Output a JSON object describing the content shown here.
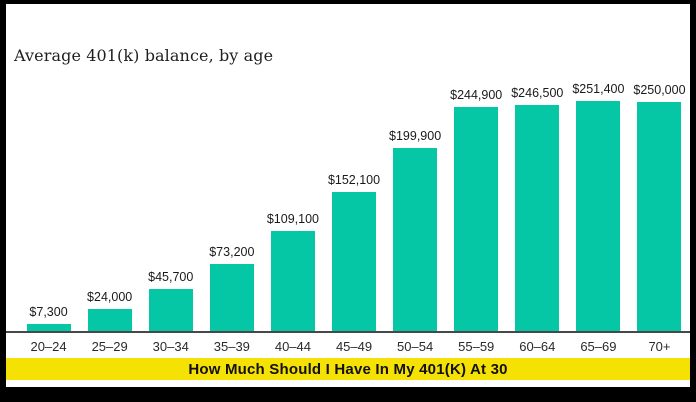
{
  "frame": {
    "border_color": "#000000",
    "canvas_background": "#ffffff"
  },
  "chart_data": {
    "type": "bar",
    "title": "Average 401(k) balance, by age",
    "categories": [
      "20–24",
      "25–29",
      "30–34",
      "35–39",
      "40–44",
      "45–49",
      "50–54",
      "55–59",
      "60–64",
      "65–69",
      "70+"
    ],
    "values": [
      7300,
      24000,
      45700,
      73200,
      109100,
      152100,
      199900,
      244900,
      246500,
      251400,
      250000
    ],
    "value_labels": [
      "$7,300",
      "$24,000",
      "$45,700",
      "$73,200",
      "$109,100",
      "$152,100",
      "$199,900",
      "$244,900",
      "$246,500",
      "$251,400",
      "$250,000"
    ],
    "xlabel": "",
    "ylabel": "",
    "ylim": [
      0,
      251400
    ],
    "grid": false,
    "legend": false,
    "bar_color": "#05c7a5",
    "axis_line_color": "#484848",
    "label_color": "#1a1a1a"
  },
  "banner": {
    "text": "How Much Should I Have In My 401(K) At 30",
    "background": "#f5e103",
    "text_color": "#111111"
  }
}
